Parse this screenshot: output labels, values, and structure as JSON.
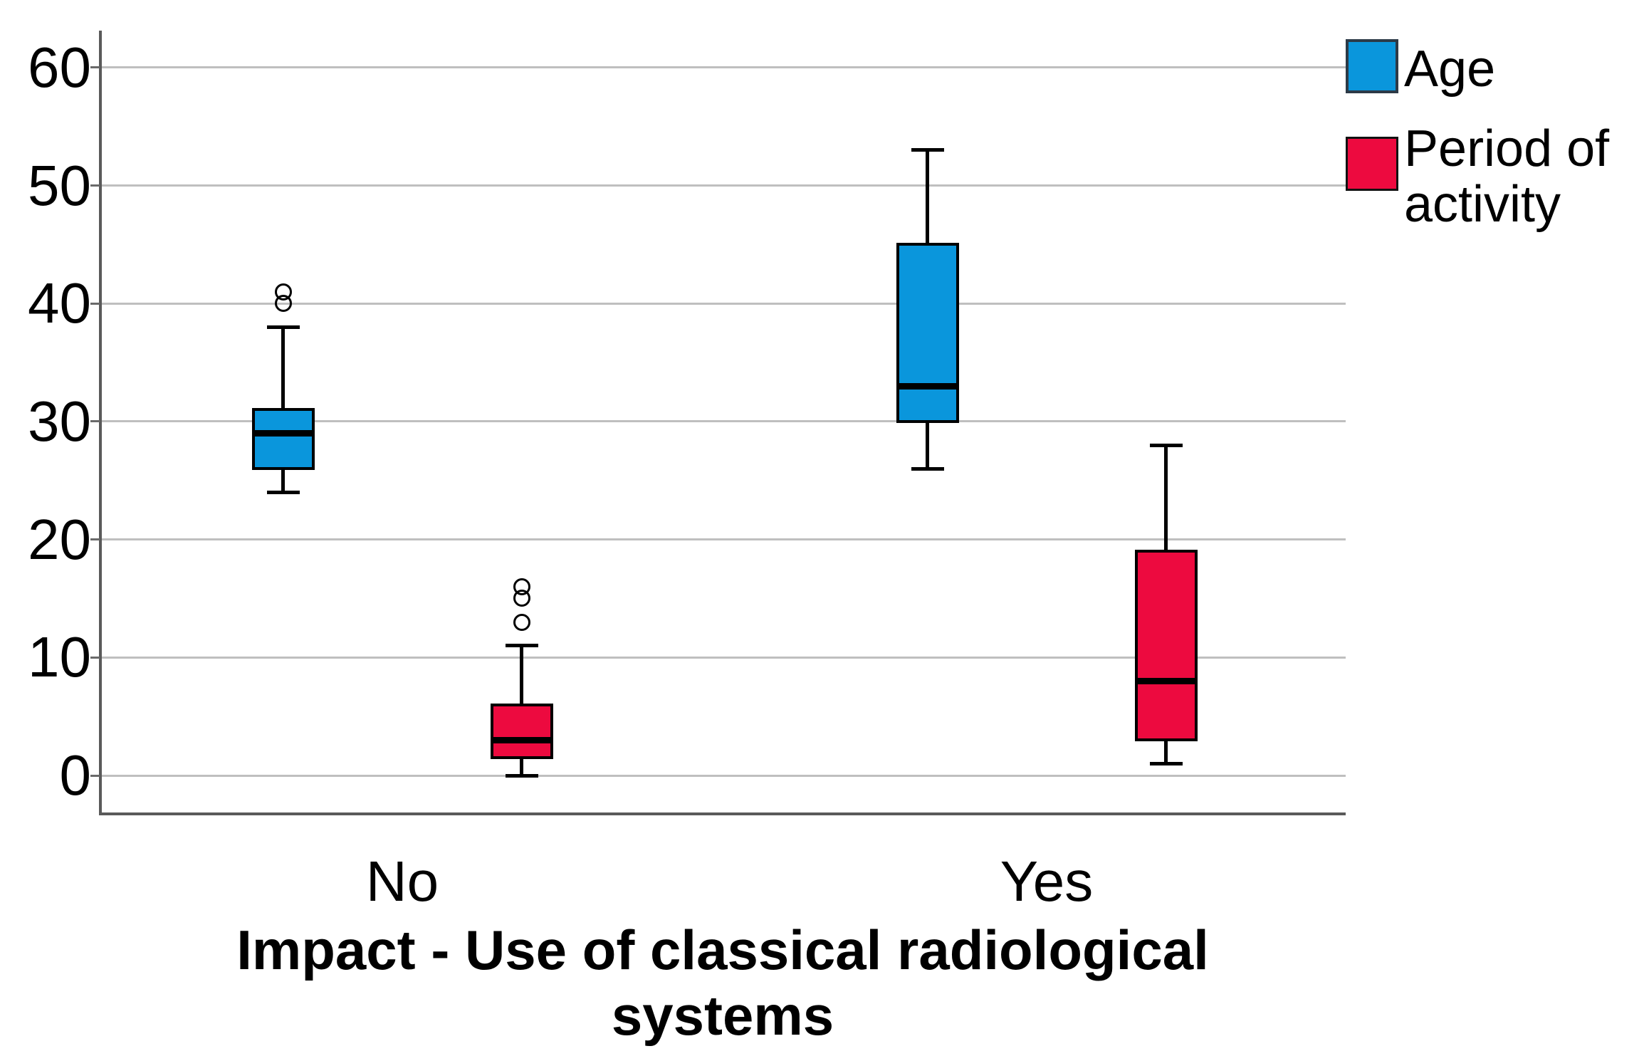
{
  "chart_data": {
    "type": "boxplot",
    "title": "",
    "xlabel": "Impact - Use of classical radiological systems",
    "ylabel": "",
    "ylim": [
      -3,
      63
    ],
    "yticks": [
      0,
      10,
      20,
      30,
      40,
      50,
      60
    ],
    "categories": [
      "No",
      "Yes"
    ],
    "grid": true,
    "legend_position": "top-right",
    "series": [
      {
        "name": "Age",
        "color": "#0A96DC",
        "boxes": [
          {
            "category": "No",
            "whisker_low": 24,
            "q1": 26,
            "median": 29,
            "q3": 31,
            "whisker_high": 38,
            "outliers": [
              40,
              41
            ]
          },
          {
            "category": "Yes",
            "whisker_low": 26,
            "q1": 30,
            "median": 33,
            "q3": 45,
            "whisker_high": 53,
            "outliers": []
          }
        ]
      },
      {
        "name": "Period of activity",
        "color": "#ED0A3F",
        "boxes": [
          {
            "category": "No",
            "whisker_low": 0,
            "q1": 1.5,
            "median": 3,
            "q3": 6,
            "whisker_high": 11,
            "outliers": [
              13,
              15,
              16
            ]
          },
          {
            "category": "Yes",
            "whisker_low": 1,
            "q1": 3,
            "median": 8,
            "q3": 19,
            "whisker_high": 28,
            "outliers": []
          }
        ]
      }
    ]
  },
  "legend": {
    "items": [
      {
        "label": "Age",
        "color": "#0A96DC"
      },
      {
        "label": "Period of activity",
        "color": "#ED0A3F"
      }
    ]
  },
  "colors": {
    "age_blue": "#0A96DC",
    "period_red": "#ED0A3F",
    "gridline": "#BFBFBF",
    "axis_gray": "#5A5A5A"
  }
}
